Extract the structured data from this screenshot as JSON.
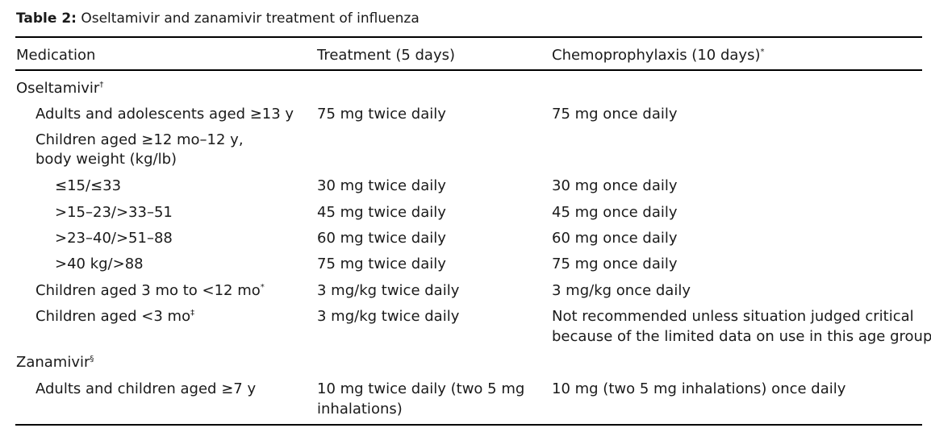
{
  "caption": {
    "label": "Table 2:",
    "text": "Oseltamivir and zanamivir treatment of influenza"
  },
  "headers": {
    "medication": "Medication",
    "treatment": "Treatment (5 days)",
    "chemo": "Chemoprophylaxis (10 days)",
    "chemo_mark": "*"
  },
  "oseltamivir": {
    "label": "Oseltamivir",
    "mark": "†",
    "adults": {
      "label": "Adults and adolescents aged ≥13 y",
      "treatment": "75 mg twice daily",
      "chemo": "75 mg once daily"
    },
    "children_header": {
      "line1": "Children aged ≥12 mo–12 y,",
      "line2": "body weight (kg/lb)"
    },
    "weights": [
      {
        "label": "≤15/≤33",
        "treatment": "30 mg twice daily",
        "chemo": "30 mg once daily"
      },
      {
        "label": ">15–23/>33–51",
        "treatment": "45 mg twice daily",
        "chemo": "45 mg once daily"
      },
      {
        "label": ">23–40/>51–88",
        "treatment": "60 mg twice daily",
        "chemo": "60 mg once daily"
      },
      {
        "label": ">40 kg/>88",
        "treatment": "75 mg twice daily",
        "chemo": "75 mg once daily"
      }
    ],
    "children_3mo": {
      "label": "Children aged 3 mo to <12 mo",
      "mark": "*",
      "treatment": "3 mg/kg twice daily",
      "chemo": "3 mg/kg once daily"
    },
    "children_lt3mo": {
      "label": "Children aged <3 mo",
      "mark": "‡",
      "treatment": "3 mg/kg twice daily",
      "chemo_line1": "Not recommended unless situation judged critical",
      "chemo_line2": "because of the limited data on use in this age group"
    }
  },
  "zanamivir": {
    "label": "Zanamivir",
    "mark": "§",
    "adults": {
      "label": "Adults and children aged ≥7 y",
      "treatment_line1": "10 mg twice daily (two 5 mg",
      "treatment_line2": "inhalations)",
      "chemo": "10 mg (two 5 mg inhalations) once daily"
    }
  }
}
